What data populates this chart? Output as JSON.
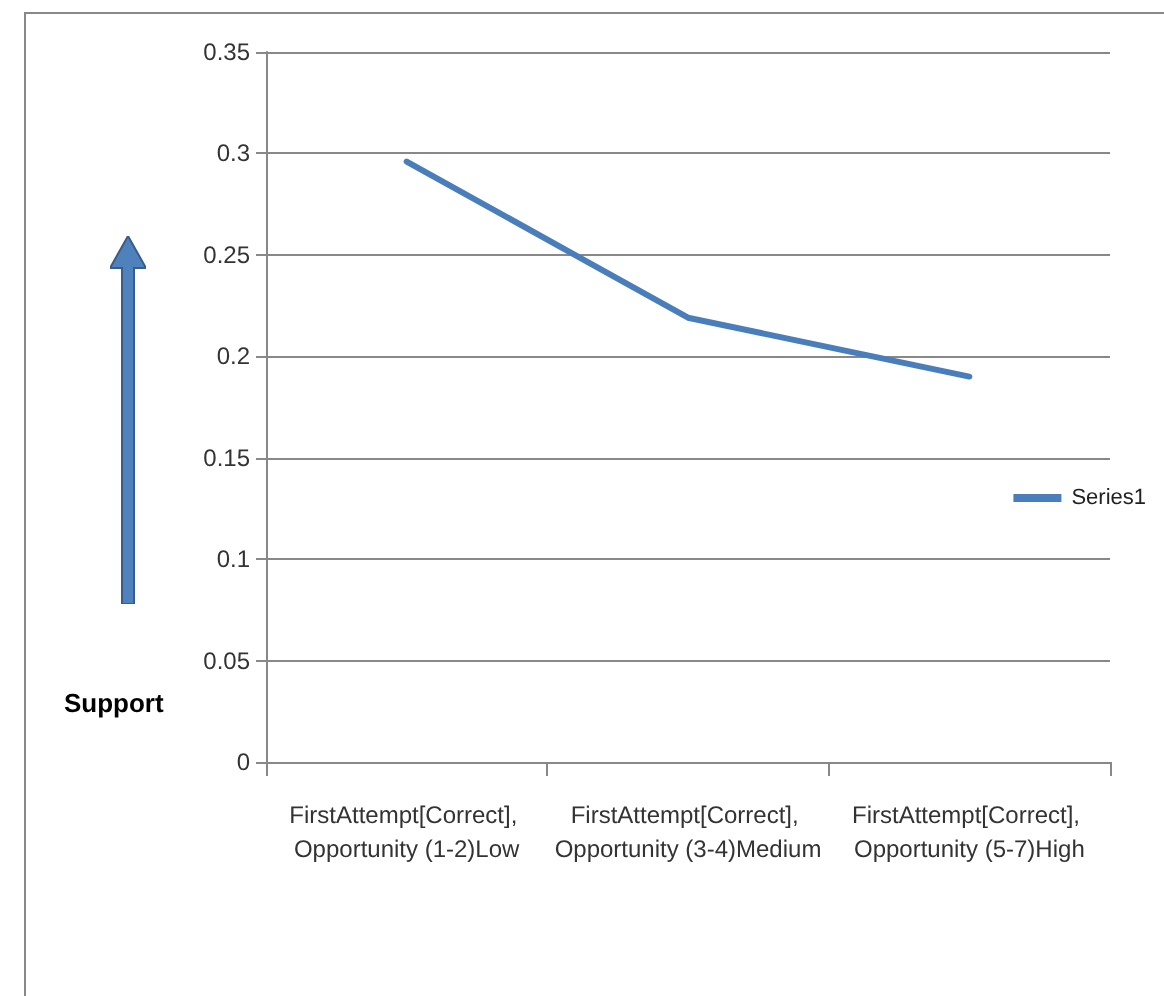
{
  "chart_data": {
    "type": "line",
    "ylabel": "Support",
    "categories": [
      "FirstAttempt[Correct], Opportunity (1-2)Low",
      "FirstAttempt[Correct], Opportunity (3-4)Medium",
      "FirstAttempt[Correct], Opportunity (5-7)High"
    ],
    "series": [
      {
        "name": "Series1",
        "color": "#4a7ebb",
        "values": [
          0.296,
          0.219,
          0.19
        ]
      }
    ],
    "ylim": [
      0,
      0.35
    ],
    "yticks": [
      0,
      0.05,
      0.1,
      0.15,
      0.2,
      0.25,
      0.3,
      0.35
    ],
    "grid": "y",
    "legend": "right",
    "marker": "none",
    "line_style": "solid"
  }
}
